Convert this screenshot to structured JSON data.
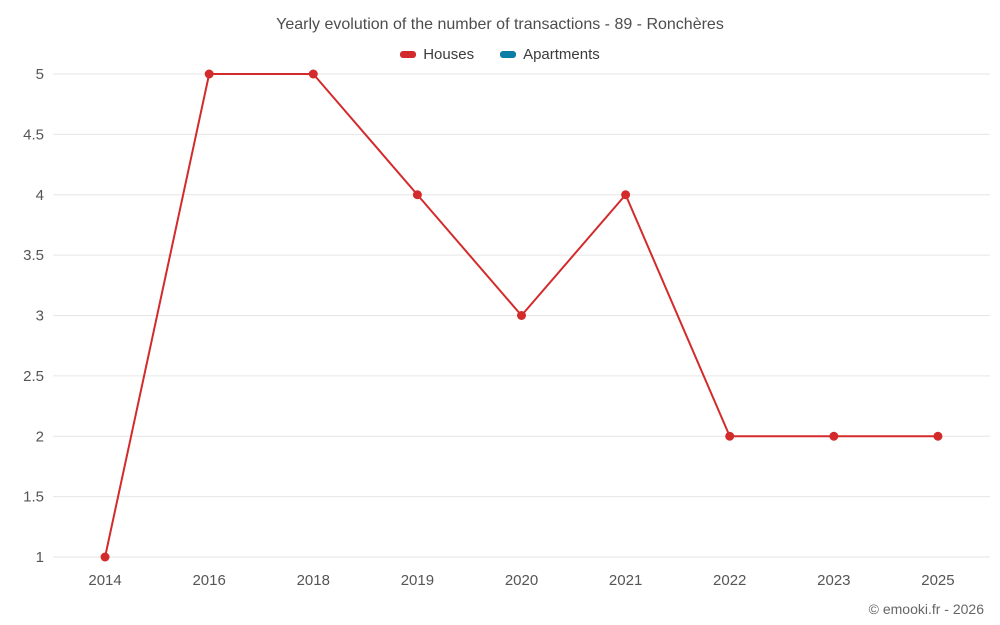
{
  "title": "Yearly evolution of the number of transactions - 89 - Ronchères",
  "legend": [
    {
      "label": "Houses",
      "color": "#d32b2b"
    },
    {
      "label": "Apartments",
      "color": "#0c7da6"
    }
  ],
  "credits": "© emooki.fr - 2026",
  "chart_data": {
    "type": "line",
    "title": "Yearly evolution of the number of transactions - 89 - Ronchères",
    "categories": [
      "2014",
      "2016",
      "2018",
      "2019",
      "2020",
      "2021",
      "2022",
      "2023",
      "2025"
    ],
    "series": [
      {
        "name": "Houses",
        "color": "#d32b2b",
        "values": [
          1,
          5,
          5,
          4,
          3,
          4,
          2,
          2,
          2
        ]
      },
      {
        "name": "Apartments",
        "color": "#0c7da6",
        "values": []
      }
    ],
    "xlabel": "",
    "ylabel": "",
    "ylim": [
      1,
      5
    ],
    "ytick_step": 0.5,
    "grid": true,
    "gridline_color": "#e6e6e6",
    "legend_position": "top"
  }
}
